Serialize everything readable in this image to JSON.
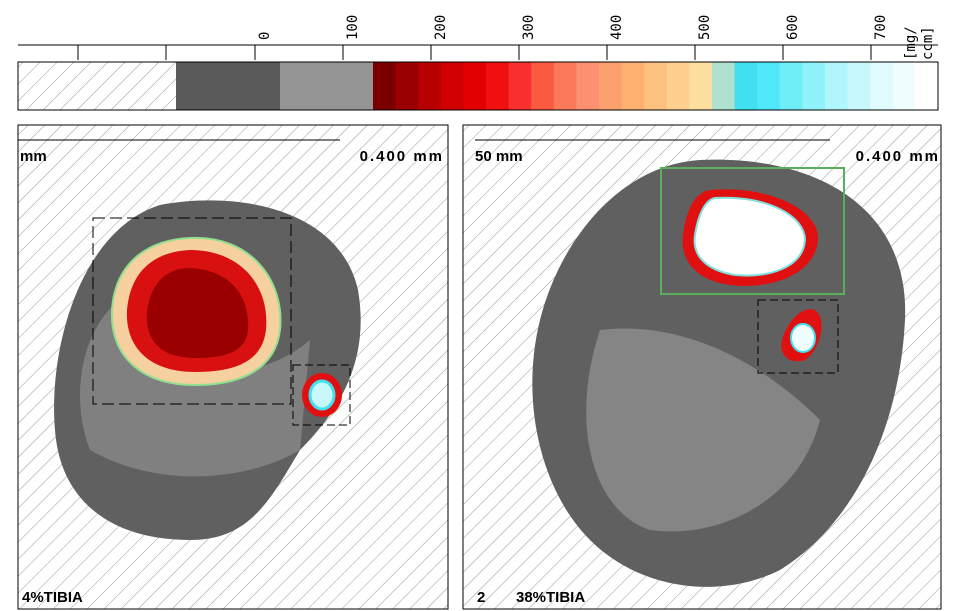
{
  "colorbar": {
    "labels": [
      "0",
      "100",
      "200",
      "300",
      "400",
      "500",
      "600",
      "700"
    ],
    "unit": [
      "[mg/",
      "ccm]"
    ],
    "colors": [
      "#7a0000",
      "#9a0000",
      "#b80000",
      "#d00000",
      "#e20000",
      "#f01010",
      "#f83030",
      "#fa5a40",
      "#fb7a5a",
      "#fc9070",
      "#fca070",
      "#fdb070",
      "#fdc080",
      "#fdd090",
      "#fde0a0",
      "#b0e0d0",
      "#40e0f0",
      "#50e8f8",
      "#70eef8",
      "#90f2fa",
      "#b0f6fc",
      "#c8f8fc",
      "#e0fbfd",
      "#f0fdfe",
      "#ffffff"
    ]
  },
  "panels": [
    {
      "scale_left": "mm",
      "scale_right": "0.400 mm",
      "caption": "4%TIBIA"
    },
    {
      "scale_left": "50 mm",
      "scale_right": "0.400 mm",
      "number": "2",
      "caption": "38%TIBIA"
    }
  ]
}
